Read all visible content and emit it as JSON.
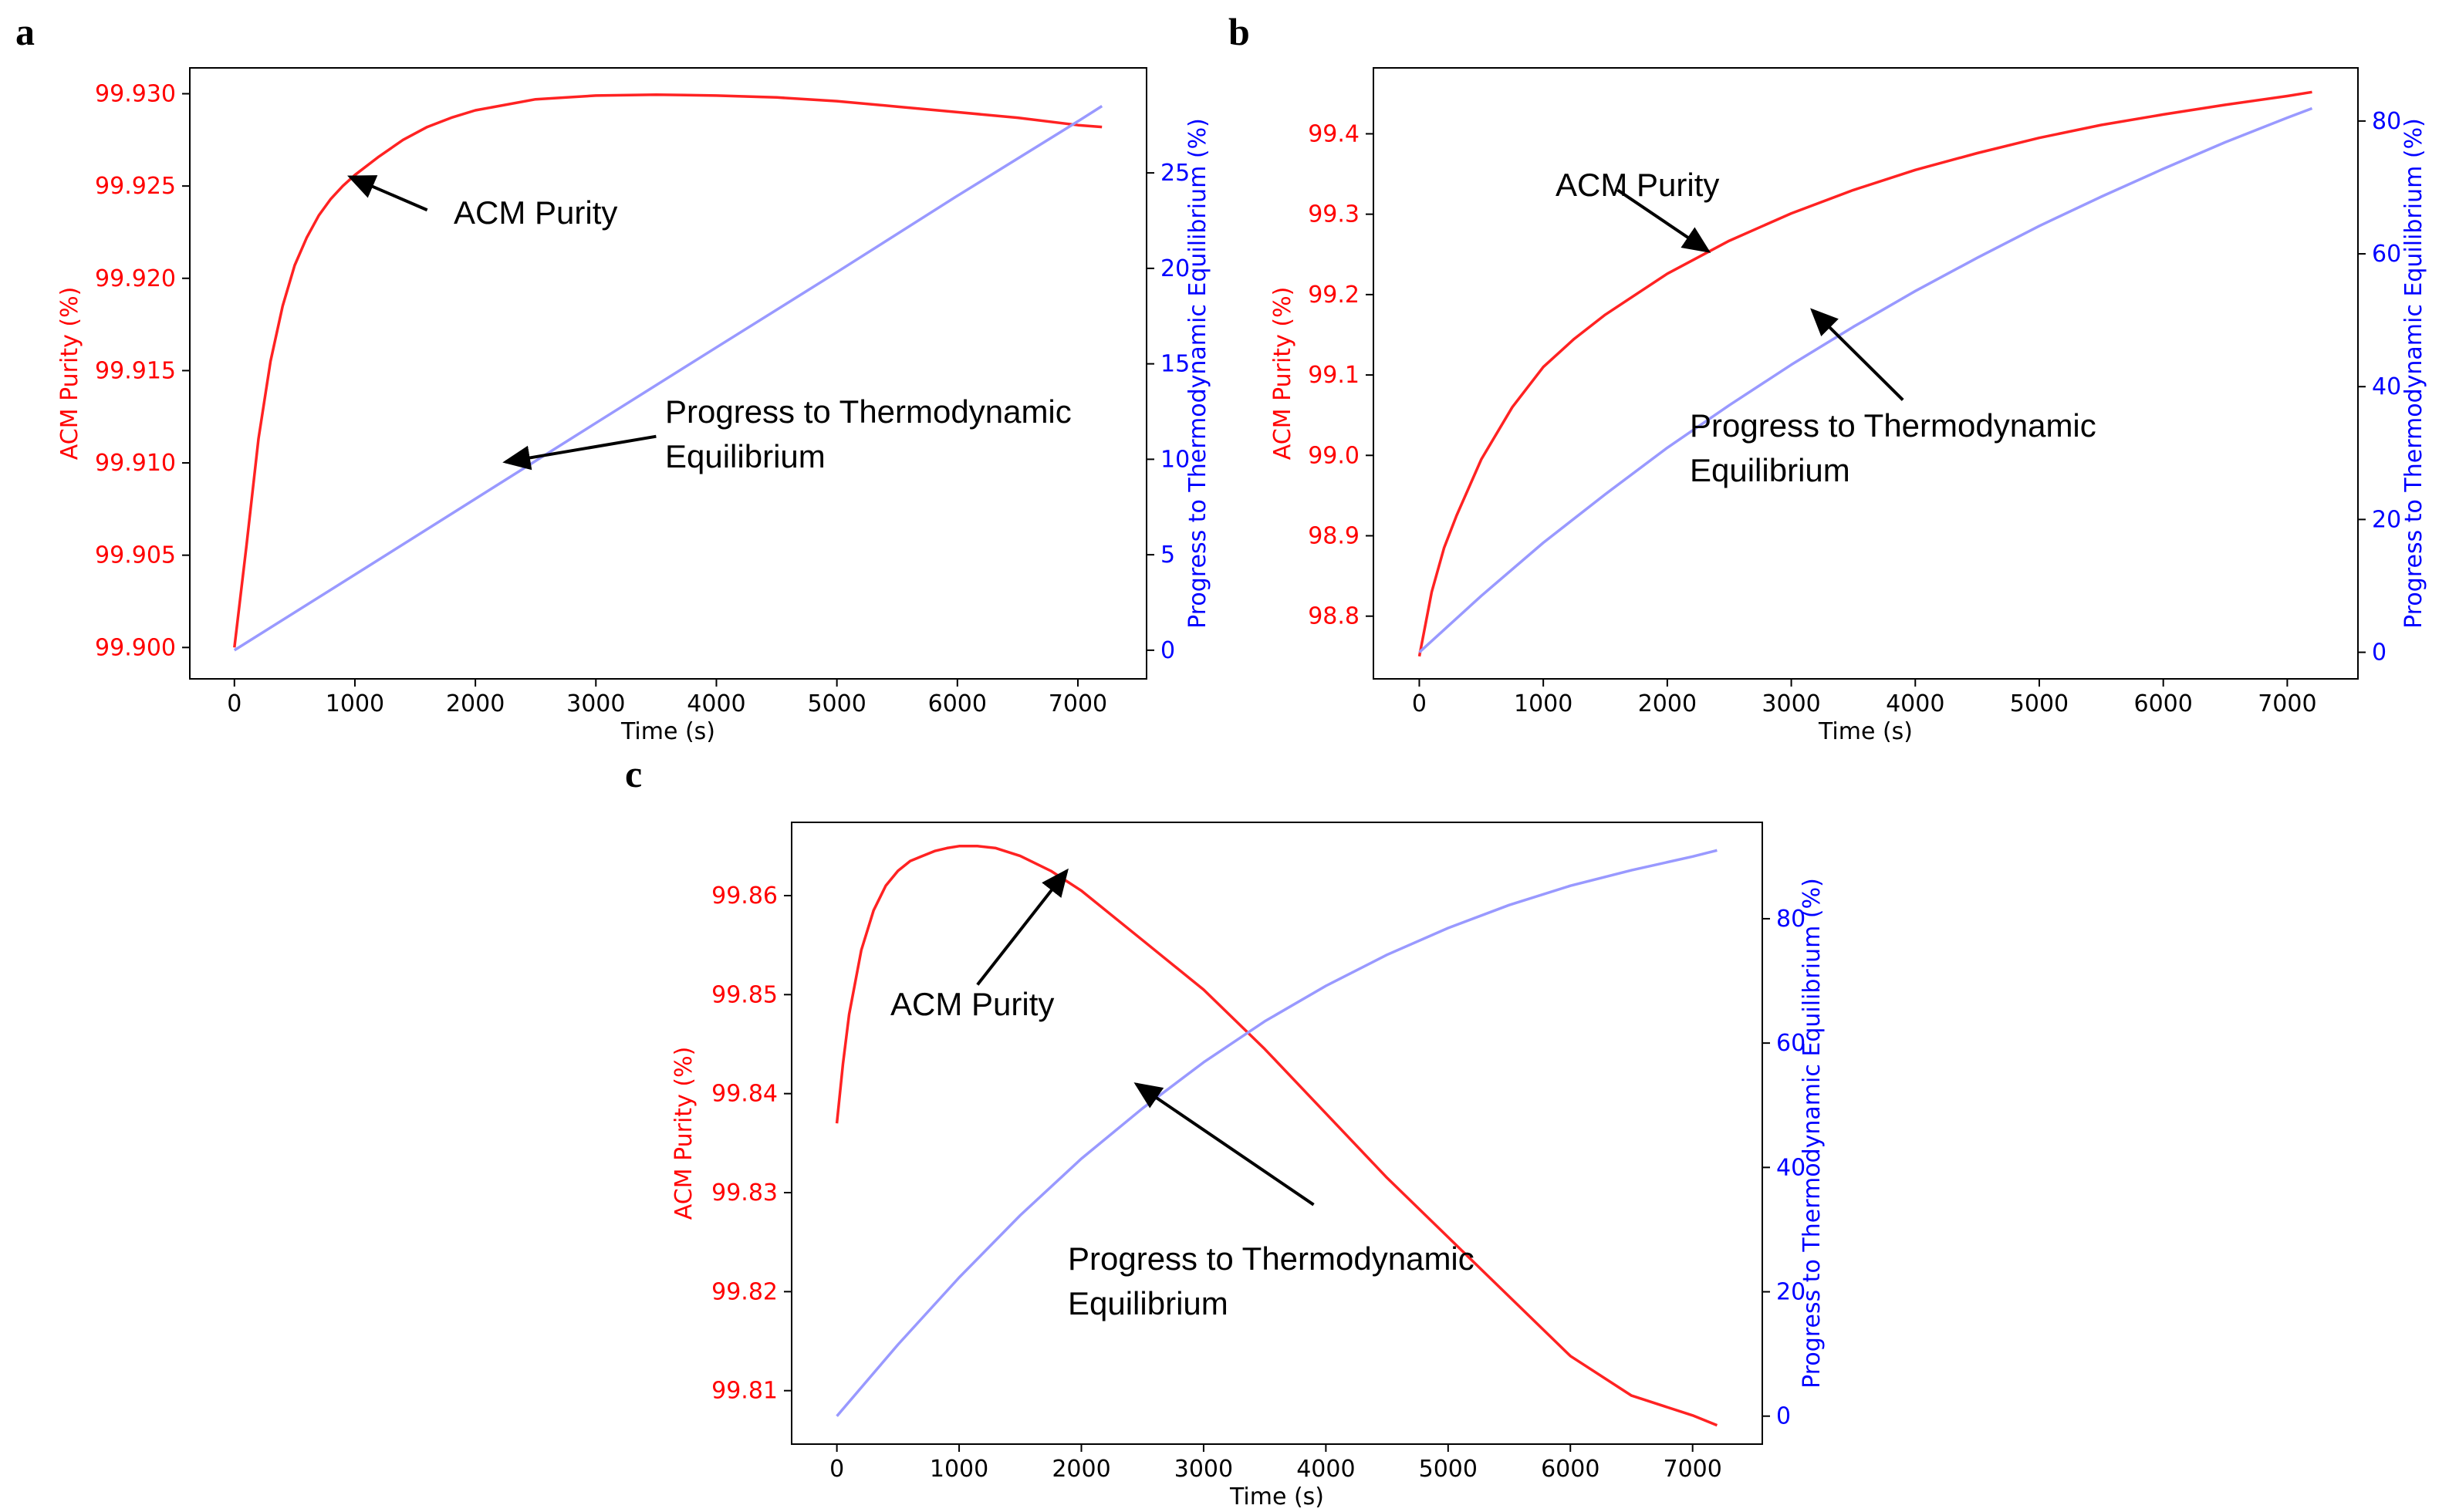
{
  "colors": {
    "purity": "#ff2222",
    "progress": "#9999ff",
    "purity_axis": "#ff0000",
    "progress_axis": "#0000ff",
    "arrow": "#000000"
  },
  "chart_data": [
    {
      "panel": "a",
      "type": "line",
      "xlabel": "Time (s)",
      "ylabel_left": "ACM Purity (%)",
      "ylabel_right": "Progress to Thermodynamic Equilibrium (%)",
      "xlim": [
        -370,
        7570
      ],
      "ylim_left": [
        99.8983,
        99.9314
      ],
      "ylim_right": [
        -1.5,
        30.5
      ],
      "xticks": [
        0,
        1000,
        2000,
        3000,
        4000,
        5000,
        6000,
        7000
      ],
      "yticks_left": [
        99.9,
        99.905,
        99.91,
        99.915,
        99.92,
        99.925,
        99.93
      ],
      "yticks_left_labels": [
        "99.900",
        "99.905",
        "99.910",
        "99.915",
        "99.920",
        "99.925",
        "99.930"
      ],
      "yticks_right": [
        0,
        5,
        10,
        15,
        20,
        25
      ],
      "series": [
        {
          "name": "ACM Purity",
          "axis": "left",
          "x": [
            0,
            100,
            200,
            300,
            400,
            500,
            600,
            700,
            800,
            900,
            1000,
            1200,
            1400,
            1600,
            1800,
            2000,
            2500,
            3000,
            3500,
            4000,
            4500,
            5000,
            5500,
            6000,
            6500,
            7000,
            7200
          ],
          "y": [
            99.9,
            99.9055,
            99.9113,
            99.9155,
            99.9185,
            99.9207,
            99.9222,
            99.9234,
            99.9243,
            99.925,
            99.9256,
            99.9266,
            99.9275,
            99.9282,
            99.9287,
            99.9291,
            99.9297,
            99.9299,
            99.92995,
            99.9299,
            99.9298,
            99.9296,
            99.9293,
            99.929,
            99.9287,
            99.9283,
            99.9282
          ]
        },
        {
          "name": "Progress to Thermodynamic Equilibrium",
          "axis": "right",
          "x": [
            0,
            1000,
            2000,
            3000,
            4000,
            5000,
            6000,
            7000,
            7200
          ],
          "y": [
            0,
            3.96,
            7.93,
            11.9,
            15.86,
            19.8,
            23.8,
            27.7,
            28.5
          ]
        }
      ],
      "annotations": [
        {
          "lines": [
            "ACM Purity"
          ],
          "xy": [
            960,
            99.9255
          ],
          "text_xy": [
            1600,
            99.9237
          ]
        },
        {
          "lines": [
            "Progress to Thermodynamic",
            "Equilibrium"
          ],
          "xy": [
            2250,
            9.86
          ],
          "text_xy": [
            3500,
            11.2
          ]
        }
      ]
    },
    {
      "panel": "b",
      "type": "line",
      "xlabel": "Time (s)",
      "ylabel_left": "ACM Purity (%)",
      "ylabel_right": "Progress to Thermodynamic Equilibrium (%)",
      "xlim": [
        -370,
        7570
      ],
      "ylim_left": [
        98.722,
        99.482
      ],
      "ylim_right": [
        -4,
        88
      ],
      "xticks": [
        0,
        1000,
        2000,
        3000,
        4000,
        5000,
        6000,
        7000
      ],
      "yticks_left": [
        98.8,
        98.9,
        99.0,
        99.1,
        99.2,
        99.3,
        99.4
      ],
      "yticks_left_labels": [
        "98.8",
        "98.9",
        "99.0",
        "99.1",
        "99.2",
        "99.3",
        "99.4"
      ],
      "yticks_right": [
        0,
        20,
        40,
        60,
        80
      ],
      "series": [
        {
          "name": "ACM Purity",
          "axis": "left",
          "x": [
            0,
            100,
            200,
            300,
            500,
            750,
            1000,
            1250,
            1500,
            2000,
            2500,
            3000,
            3500,
            4000,
            4500,
            5000,
            5500,
            6000,
            6500,
            7000,
            7200
          ],
          "y": [
            98.75,
            98.83,
            98.885,
            98.925,
            98.995,
            99.06,
            99.11,
            99.145,
            99.175,
            99.226,
            99.267,
            99.301,
            99.33,
            99.355,
            99.376,
            99.395,
            99.411,
            99.424,
            99.436,
            99.447,
            99.452
          ]
        },
        {
          "name": "Progress to Thermodynamic Equilibrium",
          "axis": "right",
          "x": [
            0,
            500,
            1000,
            1500,
            2000,
            2500,
            3000,
            3500,
            4000,
            4500,
            5000,
            5500,
            6000,
            6500,
            7000,
            7200
          ],
          "y": [
            0,
            8.5,
            16.5,
            23.8,
            30.8,
            37.2,
            43.3,
            49.0,
            54.4,
            59.4,
            64.2,
            68.6,
            72.8,
            76.8,
            80.5,
            81.9
          ]
        }
      ],
      "annotations": [
        {
          "lines": [
            "ACM Purity"
          ],
          "xy": [
            2330,
            99.254
          ],
          "text_xy": [
            1600,
            99.33
          ]
        },
        {
          "lines": [
            "Progress to Thermodynamic",
            "Equilibrium"
          ],
          "xy": [
            3170,
            51.5
          ],
          "text_xy": [
            3900,
            38
          ]
        }
      ]
    },
    {
      "panel": "c",
      "type": "line",
      "xlabel": "Time (s)",
      "ylabel_left": "ACM Purity (%)",
      "ylabel_right": "Progress to Thermodynamic Equilibrium (%)",
      "xlim": [
        -370,
        7570
      ],
      "ylim_left": [
        99.8046,
        99.8674
      ],
      "ylim_right": [
        -4.5,
        95.5
      ],
      "xticks": [
        0,
        1000,
        2000,
        3000,
        4000,
        5000,
        6000,
        7000
      ],
      "yticks_left": [
        99.81,
        99.82,
        99.83,
        99.84,
        99.85,
        99.86
      ],
      "yticks_left_labels": [
        "99.81",
        "99.82",
        "99.83",
        "99.84",
        "99.85",
        "99.86"
      ],
      "yticks_right": [
        0,
        20,
        40,
        60,
        80
      ],
      "series": [
        {
          "name": "ACM Purity",
          "axis": "left",
          "x": [
            0,
            50,
            100,
            200,
            300,
            400,
            500,
            600,
            700,
            800,
            900,
            1000,
            1150,
            1300,
            1500,
            1750,
            2000,
            2500,
            3000,
            3500,
            4000,
            4500,
            5000,
            5500,
            6000,
            6500,
            7000,
            7200
          ],
          "y": [
            99.837,
            99.843,
            99.848,
            99.8545,
            99.8585,
            99.861,
            99.8625,
            99.8635,
            99.864,
            99.8645,
            99.8648,
            99.865,
            99.865,
            99.8648,
            99.864,
            99.8625,
            99.8605,
            99.8555,
            99.8505,
            99.8445,
            99.838,
            99.8315,
            99.8255,
            99.8195,
            99.8135,
            99.8095,
            99.8075,
            99.8065
          ]
        },
        {
          "name": "Progress to Thermodynamic Equilibrium",
          "axis": "right",
          "x": [
            0,
            500,
            1000,
            1500,
            2000,
            2500,
            3000,
            3500,
            4000,
            4500,
            5000,
            5500,
            6000,
            6500,
            7000,
            7200
          ],
          "y": [
            0,
            11.5,
            22.3,
            32.3,
            41.4,
            49.5,
            56.9,
            63.5,
            69.2,
            74.2,
            78.5,
            82.2,
            85.3,
            87.8,
            90.0,
            91.0
          ]
        }
      ],
      "annotations": [
        {
          "lines": [
            "ACM Purity"
          ],
          "xy": [
            1880,
            99.8625
          ],
          "text_xy": [
            1150,
            99.851
          ]
        },
        {
          "lines": [
            "Progress to Thermodynamic",
            "Equilibrium"
          ],
          "xy": [
            2450,
            53.4
          ],
          "text_xy": [
            3900,
            34
          ]
        }
      ]
    }
  ]
}
